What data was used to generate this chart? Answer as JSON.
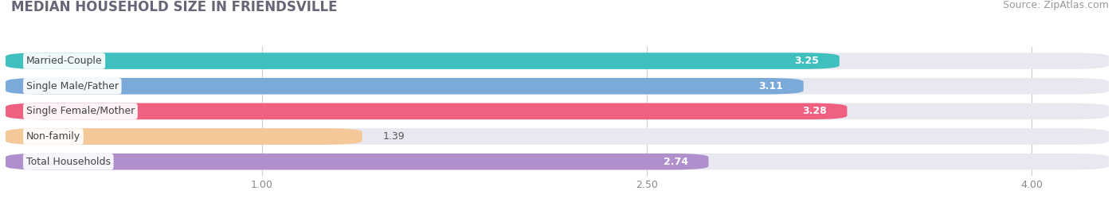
{
  "title": "MEDIAN HOUSEHOLD SIZE IN FRIENDSVILLE",
  "source": "Source: ZipAtlas.com",
  "categories": [
    "Married-Couple",
    "Single Male/Father",
    "Single Female/Mother",
    "Non-family",
    "Total Households"
  ],
  "values": [
    3.25,
    3.11,
    3.28,
    1.39,
    2.74
  ],
  "bar_colors": [
    "#40bfbf",
    "#7baada",
    "#f06080",
    "#f5c89a",
    "#b090cc"
  ],
  "xlim_left": 0.0,
  "xlim_right": 4.3,
  "xstart": 0.0,
  "xticks": [
    1.0,
    2.5,
    4.0
  ],
  "xtick_labels": [
    "1.00",
    "2.50",
    "4.00"
  ],
  "background_color": "#ffffff",
  "bar_bg_color": "#e8e8f0",
  "title_fontsize": 12,
  "source_fontsize": 9,
  "label_fontsize": 9,
  "value_fontsize": 9,
  "bar_height": 0.65,
  "value_inside_color": "#ffffff",
  "value_outside_color": "#555555",
  "inside_threshold": 2.0
}
